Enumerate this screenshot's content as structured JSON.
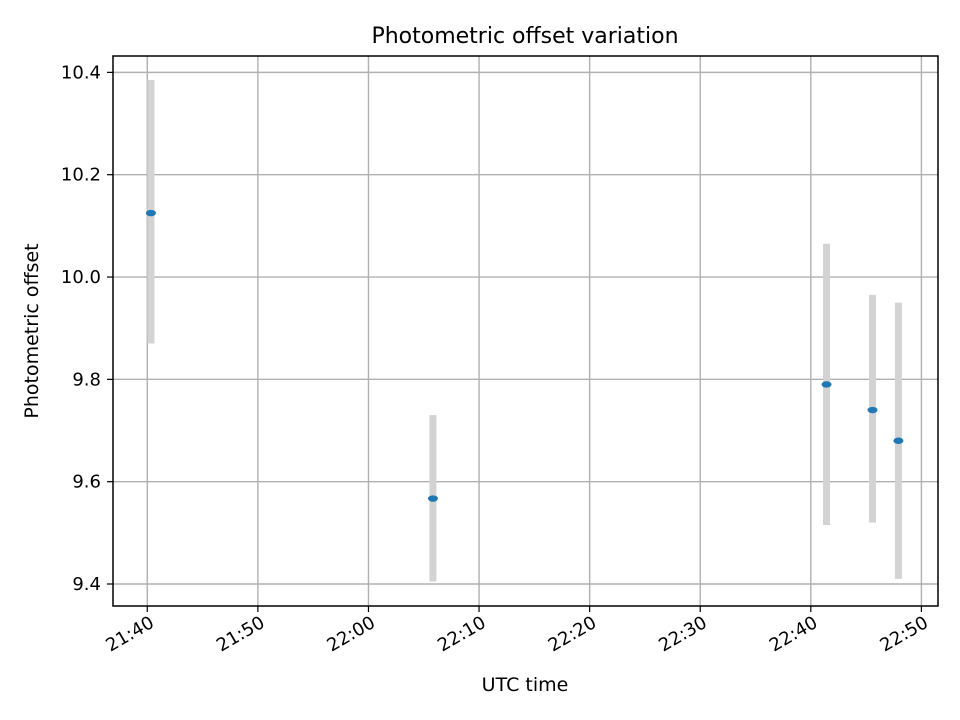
{
  "chart_data": {
    "type": "scatter",
    "title": "Photometric offset variation",
    "xlabel": "UTC time",
    "ylabel": "Photometric offset",
    "x_tick_labels": [
      "21:40",
      "21:50",
      "22:00",
      "22:10",
      "22:20",
      "22:30",
      "22:40",
      "22:50"
    ],
    "x_tick_minutes": [
      1300,
      1310,
      1320,
      1330,
      1340,
      1350,
      1360,
      1370
    ],
    "y_ticks": [
      9.4,
      9.6,
      9.8,
      10.0,
      10.2,
      10.4
    ],
    "y_tick_labels": [
      "9.4",
      "9.6",
      "9.8",
      "10.0",
      "10.2",
      "10.4"
    ],
    "xlim_minutes": [
      1296.9,
      1371.5
    ],
    "ylim": [
      9.357,
      10.432
    ],
    "grid": true,
    "series": [
      {
        "points": [
          {
            "time": "21:40:20",
            "minute": 1300.33,
            "y": 10.125,
            "err_low": 9.87,
            "err_high": 10.385
          },
          {
            "time": "22:05:50",
            "minute": 1325.83,
            "y": 9.567,
            "err_low": 9.405,
            "err_high": 9.73
          },
          {
            "time": "22:41:25",
            "minute": 1361.42,
            "y": 9.79,
            "err_low": 9.515,
            "err_high": 10.065
          },
          {
            "time": "22:45:35",
            "minute": 1365.58,
            "y": 9.74,
            "err_low": 9.52,
            "err_high": 9.965
          },
          {
            "time": "22:47:55",
            "minute": 1367.92,
            "y": 9.68,
            "err_low": 9.41,
            "err_high": 9.95
          }
        ]
      }
    ],
    "colors": {
      "marker": "#1f77b4",
      "errorbar": "#d3d3d3",
      "grid": "#b0b0b0",
      "axes": "#000000"
    }
  }
}
